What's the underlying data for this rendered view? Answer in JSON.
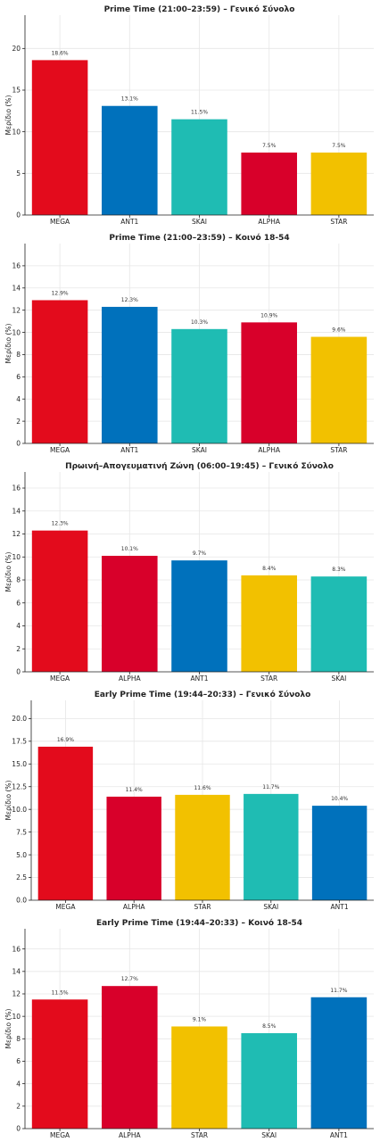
{
  "colors": {
    "MEGA": "#e30b1c",
    "ANT1": "#0071bc",
    "SKAI": "#1fbcb3",
    "ALPHA": "#d8002a",
    "STAR": "#f2c100"
  },
  "chart_data": [
    {
      "type": "bar",
      "title": "Prime Time (21:00–23:59) – Γενικό Σύνολο",
      "ylabel": "Μερίδιο (%)",
      "categories": [
        "MEGA",
        "ANT1",
        "SKAI",
        "ALPHA",
        "STAR"
      ],
      "values": [
        18.6,
        13.1,
        11.5,
        7.5,
        7.5
      ],
      "data_labels": [
        "18.6%",
        "13.1%",
        "11.5%",
        "7.5%",
        "7.5%"
      ],
      "ylim": [
        0,
        24
      ],
      "yticks": [
        0,
        5,
        10,
        15,
        20
      ],
      "ytick_labels": [
        "0",
        "5",
        "10",
        "15",
        "20"
      ],
      "grid": true
    },
    {
      "type": "bar",
      "title": "Prime Time (21:00–23:59) – Κοινό 18-54",
      "ylabel": "Μερίδιο (%)",
      "categories": [
        "MEGA",
        "ANT1",
        "SKAI",
        "ALPHA",
        "STAR"
      ],
      "values": [
        12.9,
        12.3,
        10.3,
        10.9,
        9.6
      ],
      "data_labels": [
        "12.9%",
        "12.3%",
        "10.3%",
        "10.9%",
        "9.6%"
      ],
      "ylim": [
        0,
        18
      ],
      "yticks": [
        0,
        2,
        4,
        6,
        8,
        10,
        12,
        14,
        16
      ],
      "ytick_labels": [
        "0",
        "2",
        "4",
        "6",
        "8",
        "10",
        "12",
        "14",
        "16"
      ],
      "grid": true
    },
    {
      "type": "bar",
      "title": "Πρωινή–Απογευματινή Ζώνη (06:00–19:45) – Γενικό Σύνολο",
      "ylabel": "Μερίδιο (%)",
      "categories": [
        "MEGA",
        "ALPHA",
        "ANT1",
        "STAR",
        "SKAI"
      ],
      "values": [
        12.3,
        10.1,
        9.7,
        8.4,
        8.3
      ],
      "data_labels": [
        "12.3%",
        "10.1%",
        "9.7%",
        "8.4%",
        "8.3%"
      ],
      "ylim": [
        0,
        17.4
      ],
      "yticks": [
        0,
        2,
        4,
        6,
        8,
        10,
        12,
        14,
        16
      ],
      "ytick_labels": [
        "0",
        "2",
        "4",
        "6",
        "8",
        "10",
        "12",
        "14",
        "16"
      ],
      "grid": true
    },
    {
      "type": "bar",
      "title": "Early Prime Time (19:44–20:33) – Γενικό Σύνολο",
      "ylabel": "Μερίδιο (%)",
      "categories": [
        "MEGA",
        "ALPHA",
        "STAR",
        "SKAI",
        "ANT1"
      ],
      "values": [
        16.9,
        11.4,
        11.6,
        11.7,
        10.4
      ],
      "data_labels": [
        "16.9%",
        "11.4%",
        "11.6%",
        "11.7%",
        "10.4%"
      ],
      "ylim": [
        0,
        22
      ],
      "yticks": [
        0,
        2.5,
        5,
        7.5,
        10,
        12.5,
        15,
        17.5,
        20
      ],
      "ytick_labels": [
        "0.0",
        "2.5",
        "5.0",
        "7.5",
        "10.0",
        "12.5",
        "15.0",
        "17.5",
        "20.0"
      ],
      "grid": true
    },
    {
      "type": "bar",
      "title": "Early Prime Time (19:44–20:33) – Κοινό 18-54",
      "ylabel": "Μερίδιο (%)",
      "categories": [
        "MEGA",
        "ALPHA",
        "STAR",
        "SKAI",
        "ANT1"
      ],
      "values": [
        11.5,
        12.7,
        9.1,
        8.5,
        11.7
      ],
      "data_labels": [
        "11.5%",
        "12.7%",
        "9.1%",
        "8.5%",
        "11.7%"
      ],
      "ylim": [
        0,
        17.8
      ],
      "yticks": [
        0,
        2,
        4,
        6,
        8,
        10,
        12,
        14,
        16
      ],
      "ytick_labels": [
        "0",
        "2",
        "4",
        "6",
        "8",
        "10",
        "12",
        "14",
        "16"
      ],
      "grid": true
    }
  ]
}
